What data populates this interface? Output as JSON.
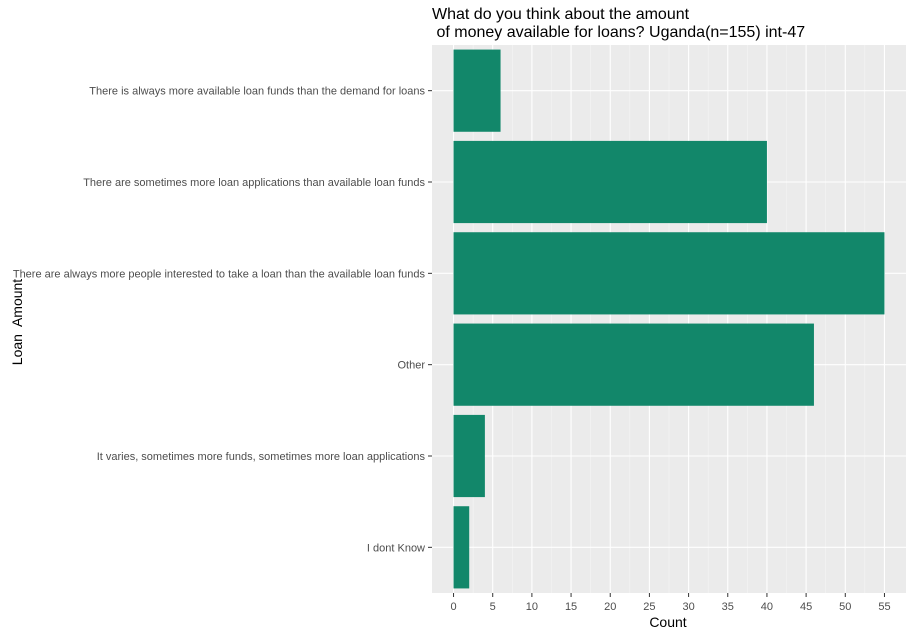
{
  "chart_data": {
    "type": "bar",
    "orientation": "horizontal",
    "title_lines": [
      "What do you think about the amount",
      " of money available for loans? Uganda(n=155) int-47"
    ],
    "xlabel": "Count",
    "ylabel": "Loan  Amount",
    "categories": [
      "There is always more available loan funds than the demand for loans",
      "There are sometimes more loan applications than available loan funds",
      "There are always more people interested to take a loan than the available loan funds",
      "Other",
      "It varies, sometimes more funds, sometimes more loan applications",
      "I dont Know"
    ],
    "values": [
      6,
      40,
      55,
      46,
      4,
      2
    ],
    "xlim": [
      -2.75,
      57.75
    ],
    "x_ticks": [
      0,
      5,
      10,
      15,
      20,
      25,
      30,
      35,
      40,
      45,
      50,
      55
    ],
    "grid": true,
    "bar_color": "#12876a",
    "panel_background": "#ebebeb",
    "grid_major_color": "#ffffff",
    "grid_minor_color": "#f5f5f5"
  }
}
